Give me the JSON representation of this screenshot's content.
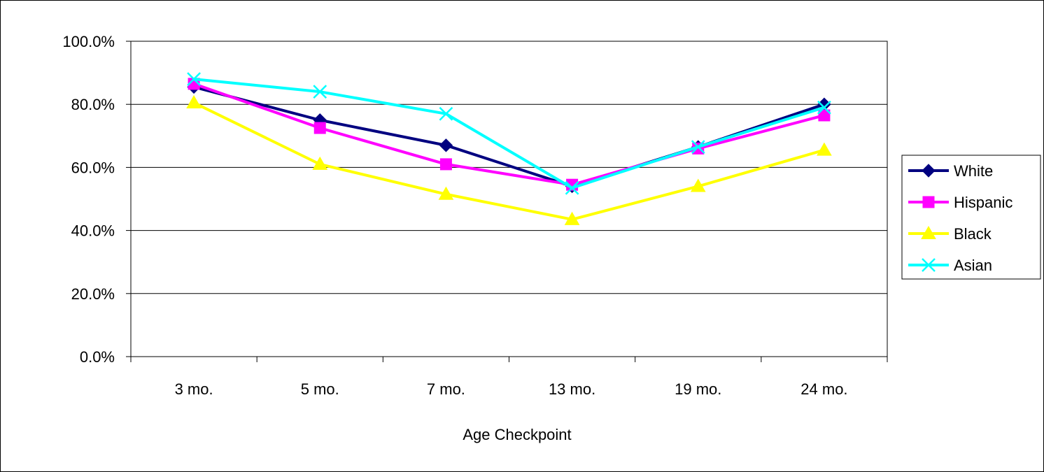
{
  "chart_data": {
    "type": "line",
    "title": "",
    "xlabel": "Age Checkpoint",
    "ylabel": "",
    "categories": [
      "3 mo.",
      "5 mo.",
      "7 mo.",
      "13 mo.",
      "19 mo.",
      "24 mo."
    ],
    "ylim": [
      0,
      100
    ],
    "yticks": [
      0,
      20,
      40,
      60,
      80,
      100
    ],
    "ytick_labels": [
      "0.0%",
      "20.0%",
      "40.0%",
      "60.0%",
      "80.0%",
      "100.0%"
    ],
    "grid": "horizontal",
    "legend_position": "right",
    "series": [
      {
        "name": "White",
        "values": [
          85.5,
          75,
          67,
          54,
          66.5,
          80
        ],
        "color": "#000080",
        "marker": "diamond"
      },
      {
        "name": "Hispanic",
        "values": [
          86.5,
          72.5,
          61,
          54.5,
          66,
          76.5
        ],
        "color": "#FF00FF",
        "marker": "square"
      },
      {
        "name": "Black",
        "values": [
          80.5,
          61,
          51.5,
          43.5,
          54,
          65.5
        ],
        "color": "#FFFF00",
        "marker": "triangle"
      },
      {
        "name": "Asian",
        "values": [
          88,
          84,
          77,
          53.5,
          66.5,
          79
        ],
        "color": "#00FFFF",
        "marker": "x"
      }
    ]
  }
}
